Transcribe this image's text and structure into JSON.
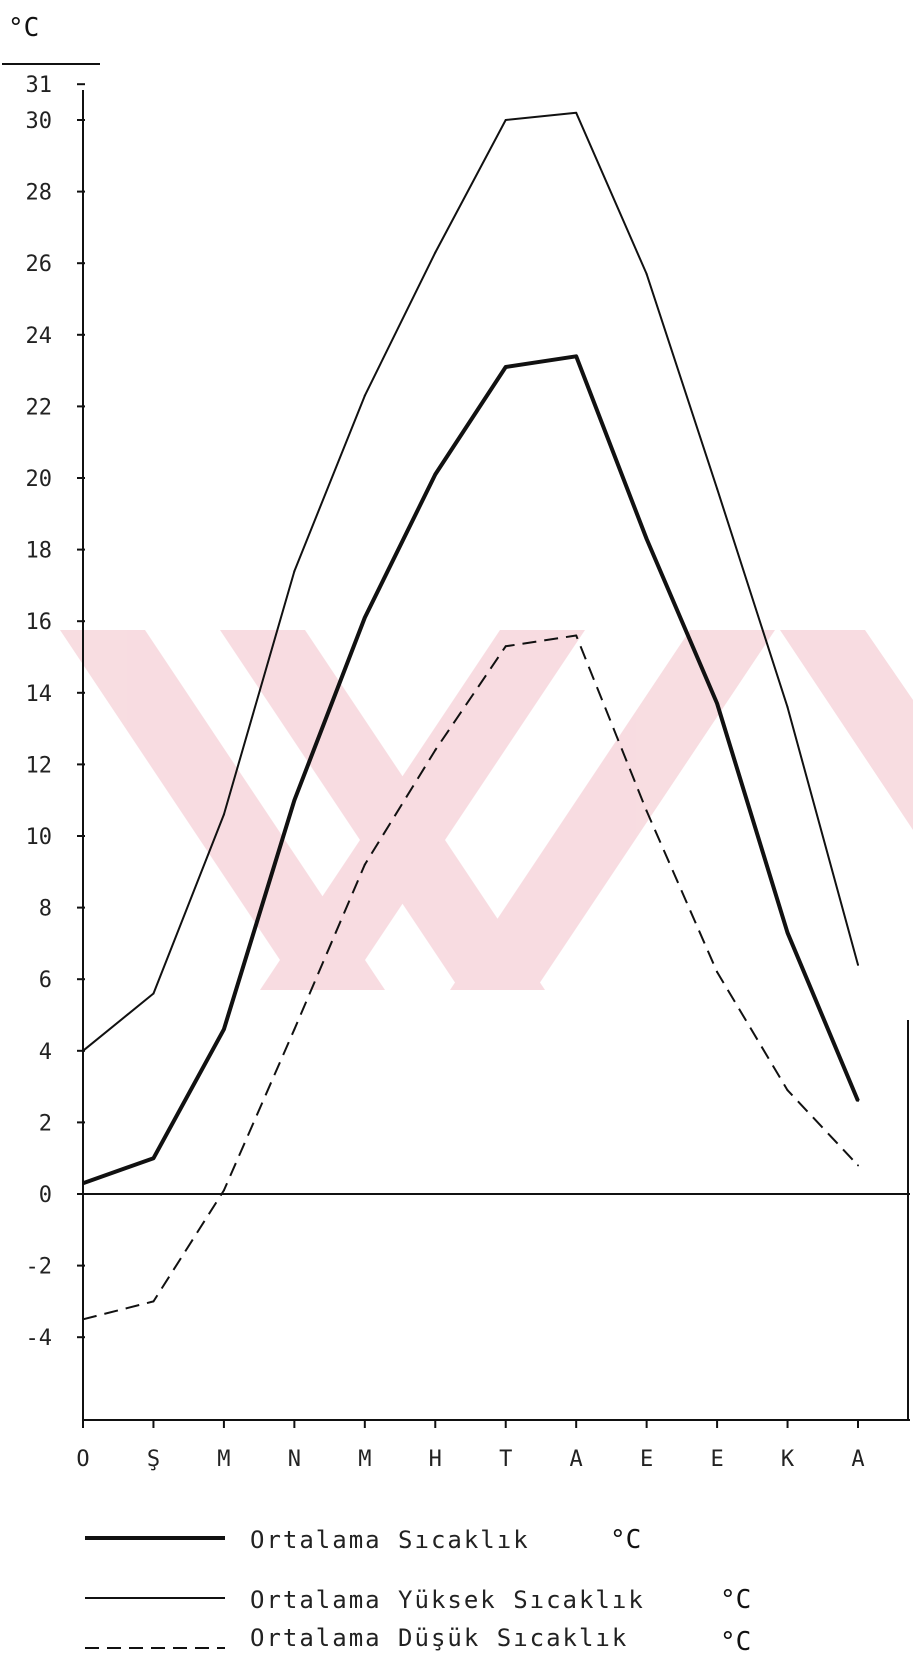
{
  "chart_data": {
    "type": "line",
    "unit_label": "°C",
    "categories": [
      "O",
      "Ş",
      "M",
      "N",
      "M",
      "H",
      "T",
      "A",
      "E",
      "E",
      "K",
      "A"
    ],
    "ylim": [
      -4,
      31
    ],
    "yticks": [
      -4,
      -2,
      0,
      2,
      4,
      6,
      8,
      10,
      12,
      14,
      16,
      18,
      20,
      22,
      24,
      26,
      28,
      30,
      31
    ],
    "grid": false,
    "series": [
      {
        "name": "Ortalama Sıcaklık",
        "unit": "°C",
        "style": "thick",
        "values": [
          0.3,
          1.0,
          4.6,
          11.0,
          16.1,
          20.1,
          23.1,
          23.4,
          18.3,
          13.7,
          7.3,
          2.6
        ]
      },
      {
        "name": "Ortalama Yüksek Sıcaklık",
        "unit": "°C",
        "style": "thin",
        "values": [
          4.0,
          5.6,
          10.6,
          17.4,
          22.3,
          26.3,
          30.0,
          30.2,
          25.7,
          19.7,
          13.6,
          6.4
        ]
      },
      {
        "name": "Ortalama Düşük Sıcaklık",
        "unit": "°C",
        "style": "dashed",
        "values": [
          -3.5,
          -3.0,
          0.1,
          4.6,
          9.2,
          12.4,
          15.3,
          15.6,
          10.7,
          6.2,
          2.9,
          0.8
        ]
      }
    ],
    "legend_position": "bottom",
    "colors": {
      "line": "#111111",
      "watermark": "#f7d7dc"
    }
  }
}
